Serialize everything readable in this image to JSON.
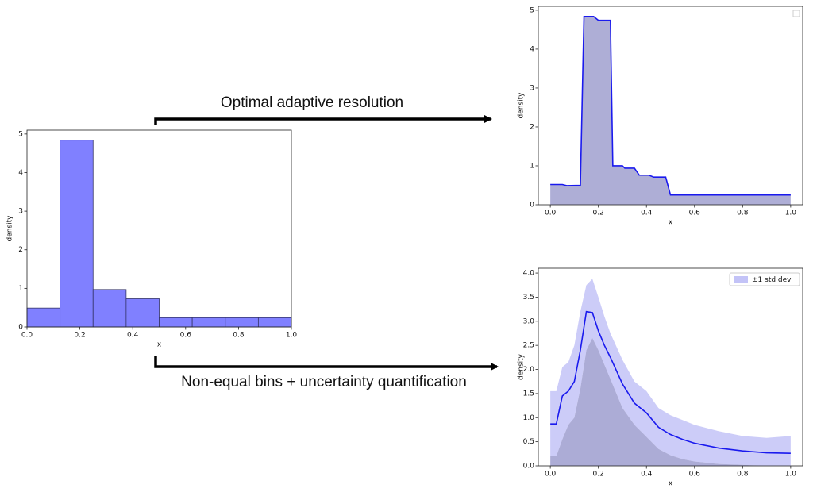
{
  "annotations": {
    "top": "Optimal adaptive resolution",
    "bottom": "Non-equal bins + uncertainty quantification"
  },
  "chart_data": [
    {
      "type": "histogram",
      "xlabel": "x",
      "ylabel": "density",
      "color": "#8080ff",
      "edgecolor": "#333366",
      "bins": [
        0,
        0.125,
        0.25,
        0.375,
        0.5,
        0.625,
        0.75,
        0.875,
        1.0
      ],
      "values": [
        0.49,
        4.84,
        0.97,
        0.73,
        0.24,
        0.24,
        0.24,
        0.24
      ],
      "xlim": [
        0,
        1
      ],
      "ylim": [
        0,
        5.1
      ],
      "xticks": [
        {
          "value": 0,
          "label": "0.0"
        },
        0.2,
        0.4,
        0.6,
        0.8,
        {
          "value": 1,
          "label": "1.0"
        }
      ],
      "yticks": [
        0,
        1,
        2,
        3,
        4,
        5
      ]
    },
    {
      "type": "line",
      "xlabel": "x",
      "ylabel": "density",
      "color": "#1a1aee",
      "fill_color": "#aeaed6",
      "x": [
        0,
        0.05,
        0.07,
        0.125,
        0.14,
        0.18,
        0.2,
        0.25,
        0.26,
        0.3,
        0.31,
        0.35,
        0.37,
        0.41,
        0.43,
        0.48,
        0.5,
        1.0
      ],
      "values": [
        0.52,
        0.52,
        0.49,
        0.5,
        4.84,
        4.84,
        4.74,
        4.74,
        1.0,
        1.0,
        0.94,
        0.94,
        0.76,
        0.76,
        0.71,
        0.71,
        0.25,
        0.25
      ],
      "xlim": [
        -0.05,
        1.05
      ],
      "ylim": [
        0,
        5.1
      ],
      "xticks": [
        {
          "value": 0,
          "label": "0.0"
        },
        0.2,
        0.4,
        0.6,
        0.8,
        {
          "value": 1,
          "label": "1.0"
        }
      ],
      "yticks": [
        0,
        1,
        2,
        3,
        4,
        5
      ]
    },
    {
      "type": "line",
      "xlabel": "x",
      "ylabel": "density",
      "color": "#1a1aee",
      "legend": "upper right",
      "x": [
        0,
        0.025,
        0.05,
        0.075,
        0.1,
        0.125,
        0.15,
        0.175,
        0.2,
        0.225,
        0.25,
        0.3,
        0.35,
        0.4,
        0.45,
        0.5,
        0.55,
        0.6,
        0.7,
        0.8,
        0.9,
        1.0
      ],
      "values": [
        0.87,
        0.87,
        1.45,
        1.55,
        1.75,
        2.4,
        3.2,
        3.18,
        2.8,
        2.5,
        2.25,
        1.7,
        1.3,
        1.1,
        0.8,
        0.65,
        0.55,
        0.47,
        0.37,
        0.31,
        0.27,
        0.26
      ],
      "band": {
        "name": "±1 std dev",
        "color": "#c3c3f7",
        "lower_color": "#a3a3d2",
        "lower": [
          0.2,
          0.2,
          0.55,
          0.85,
          1.0,
          1.6,
          2.4,
          2.65,
          2.4,
          2.1,
          1.8,
          1.2,
          0.85,
          0.6,
          0.35,
          0.22,
          0.14,
          0.09,
          0.04,
          0.02,
          0,
          0
        ],
        "upper": [
          1.55,
          1.55,
          2.05,
          2.15,
          2.5,
          3.2,
          3.75,
          3.88,
          3.5,
          3.1,
          2.75,
          2.2,
          1.75,
          1.55,
          1.2,
          1.05,
          0.95,
          0.85,
          0.72,
          0.62,
          0.58,
          0.62
        ]
      },
      "xlim": [
        -0.05,
        1.05
      ],
      "ylim": [
        0,
        4.1
      ],
      "xticks": [
        {
          "value": 0,
          "label": "0.0"
        },
        0.2,
        0.4,
        0.6,
        0.8,
        {
          "value": 1,
          "label": "1.0"
        }
      ],
      "yticks": [
        {
          "value": 0,
          "label": "0.0"
        },
        0.5,
        {
          "value": 1,
          "label": "1.0"
        },
        1.5,
        {
          "value": 2,
          "label": "2.0"
        },
        2.5,
        {
          "value": 3,
          "label": "3.0"
        },
        3.5,
        {
          "value": 4,
          "label": "4.0"
        }
      ]
    }
  ]
}
